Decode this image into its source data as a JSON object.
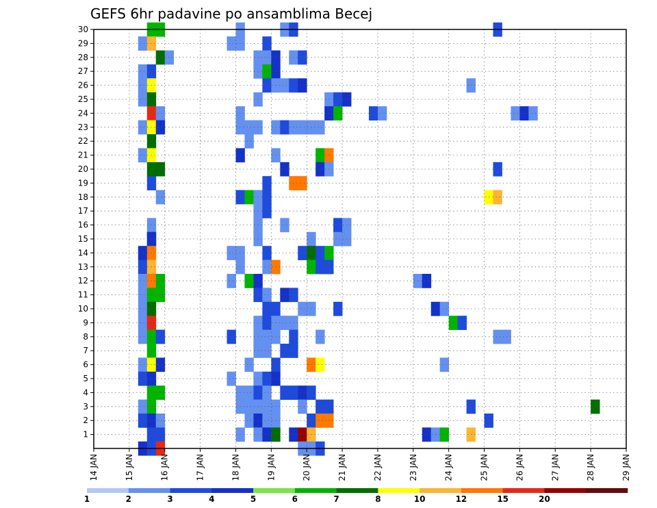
{
  "chart_data": {
    "type": "heatmap",
    "title": "GEFS 6hr padavine po ansamblima Becej",
    "xlabel": "",
    "ylabel": "",
    "x_ticks": [
      "14 JAN",
      "15 JAN",
      "16 JAN",
      "17 JAN",
      "18 JAN",
      "19 JAN",
      "20 JAN",
      "21 JAN",
      "22 JAN",
      "23 JAN",
      "24 JAN",
      "25 JAN",
      "26 JAN",
      "27 JAN",
      "28 JAN",
      "29 JAN"
    ],
    "x_range_days": [
      14,
      29
    ],
    "y_ticks": [
      1,
      2,
      3,
      4,
      5,
      6,
      7,
      8,
      9,
      10,
      11,
      12,
      13,
      14,
      15,
      16,
      17,
      18,
      19,
      20,
      21,
      22,
      23,
      24,
      25,
      26,
      27,
      28,
      29,
      30
    ],
    "y_range": [
      0,
      30
    ],
    "grid": true,
    "time_step_hours": 6,
    "legend": {
      "placement": "bottom",
      "labels": [
        "1",
        "2",
        "3",
        "4",
        "5",
        "6",
        "7",
        "8",
        "10",
        "12",
        "15",
        "20"
      ],
      "colors": [
        "#b4c8f5",
        "#6490f0",
        "#1e4bdc",
        "#1432c8",
        "#78e646",
        "#00b400",
        "#006e00",
        "#ffff00",
        "#ffb432",
        "#ff7800",
        "#e62814",
        "#960000",
        "#640a0a"
      ]
    },
    "cells": [
      [
        30,
        15.5,
        5
      ],
      [
        30,
        15.75,
        5
      ],
      [
        30,
        18.0,
        1
      ],
      [
        30,
        19.25,
        1
      ],
      [
        30,
        19.5,
        2
      ],
      [
        30,
        25.25,
        2
      ],
      [
        29,
        15.25,
        1
      ],
      [
        29,
        15.5,
        8
      ],
      [
        29,
        17.75,
        1
      ],
      [
        29,
        18.0,
        1
      ],
      [
        29,
        18.75,
        2
      ],
      [
        28,
        15.75,
        6
      ],
      [
        28,
        16.0,
        1
      ],
      [
        28,
        18.5,
        1
      ],
      [
        28,
        18.75,
        1
      ],
      [
        28,
        19.0,
        3
      ],
      [
        28,
        19.5,
        1
      ],
      [
        28,
        19.75,
        2
      ],
      [
        27,
        15.25,
        1
      ],
      [
        27,
        15.5,
        2
      ],
      [
        27,
        18.5,
        1
      ],
      [
        27,
        18.75,
        5
      ],
      [
        27,
        19.0,
        3
      ],
      [
        26,
        15.25,
        1
      ],
      [
        26,
        15.5,
        7
      ],
      [
        26,
        18.75,
        2
      ],
      [
        26,
        19.0,
        1
      ],
      [
        26,
        19.25,
        1
      ],
      [
        26,
        19.5,
        2
      ],
      [
        26,
        19.75,
        3
      ],
      [
        26,
        24.5,
        1
      ],
      [
        25,
        15.25,
        1
      ],
      [
        25,
        15.5,
        6
      ],
      [
        25,
        18.5,
        1
      ],
      [
        25,
        20.5,
        1
      ],
      [
        25,
        20.75,
        2
      ],
      [
        25,
        21.0,
        3
      ],
      [
        24,
        15.5,
        10
      ],
      [
        24,
        15.75,
        1
      ],
      [
        24,
        18.0,
        1
      ],
      [
        24,
        20.5,
        3
      ],
      [
        24,
        20.75,
        5
      ],
      [
        24,
        21.75,
        2
      ],
      [
        24,
        22.0,
        1
      ],
      [
        24,
        25.75,
        1
      ],
      [
        24,
        26.0,
        3
      ],
      [
        24,
        26.25,
        1
      ],
      [
        23,
        15.25,
        1
      ],
      [
        23,
        15.5,
        7
      ],
      [
        23,
        15.75,
        3
      ],
      [
        23,
        18.0,
        1
      ],
      [
        23,
        18.25,
        1
      ],
      [
        23,
        18.5,
        1
      ],
      [
        23,
        19.0,
        1
      ],
      [
        23,
        19.25,
        2
      ],
      [
        23,
        19.5,
        1
      ],
      [
        23,
        19.75,
        1
      ],
      [
        23,
        20.0,
        1
      ],
      [
        23,
        20.25,
        1
      ],
      [
        22,
        15.5,
        6
      ],
      [
        22,
        18.25,
        1
      ],
      [
        21,
        15.25,
        1
      ],
      [
        21,
        15.5,
        7
      ],
      [
        21,
        18.0,
        3
      ],
      [
        21,
        19.0,
        1
      ],
      [
        21,
        20.25,
        5
      ],
      [
        21,
        20.5,
        9
      ],
      [
        20,
        15.5,
        6
      ],
      [
        20,
        15.75,
        6
      ],
      [
        20,
        19.25,
        3
      ],
      [
        20,
        20.25,
        3
      ],
      [
        20,
        20.5,
        1
      ],
      [
        20,
        25.25,
        2
      ],
      [
        19,
        15.5,
        2
      ],
      [
        19,
        18.75,
        2
      ],
      [
        19,
        19.5,
        9
      ],
      [
        19,
        19.75,
        9
      ],
      [
        18,
        15.75,
        1
      ],
      [
        18,
        18.0,
        2
      ],
      [
        18,
        18.25,
        5
      ],
      [
        18,
        18.5,
        1
      ],
      [
        18,
        18.75,
        2
      ],
      [
        18,
        25.0,
        7
      ],
      [
        18,
        25.25,
        8
      ],
      [
        17,
        18.5,
        1
      ],
      [
        17,
        18.75,
        2
      ],
      [
        16,
        15.5,
        1
      ],
      [
        16,
        18.5,
        1
      ],
      [
        16,
        19.25,
        1
      ],
      [
        16,
        20.75,
        2
      ],
      [
        16,
        21.0,
        1
      ],
      [
        15,
        15.5,
        3
      ],
      [
        15,
        18.5,
        1
      ],
      [
        15,
        20.0,
        1
      ],
      [
        15,
        20.75,
        1
      ],
      [
        15,
        21.0,
        1
      ],
      [
        14,
        15.25,
        3
      ],
      [
        15,
        15.5,
        3
      ],
      [
        14,
        15.5,
        9
      ],
      [
        14,
        17.75,
        1
      ],
      [
        14,
        18.0,
        1
      ],
      [
        14,
        18.75,
        2
      ],
      [
        14,
        19.75,
        2
      ],
      [
        14,
        20.0,
        6
      ],
      [
        14,
        20.25,
        2
      ],
      [
        14,
        20.5,
        5
      ],
      [
        13,
        15.25,
        2
      ],
      [
        13,
        15.5,
        8
      ],
      [
        13,
        18.0,
        1
      ],
      [
        13,
        18.75,
        1
      ],
      [
        13,
        19.0,
        9
      ],
      [
        13,
        20.0,
        5
      ],
      [
        13,
        20.25,
        2
      ],
      [
        13,
        20.5,
        2
      ],
      [
        12,
        15.25,
        1
      ],
      [
        12,
        15.5,
        9
      ],
      [
        12,
        15.75,
        5
      ],
      [
        12,
        17.75,
        1
      ],
      [
        12,
        18.25,
        5
      ],
      [
        12,
        18.5,
        3
      ],
      [
        12,
        23.0,
        1
      ],
      [
        12,
        23.25,
        3
      ],
      [
        11,
        15.25,
        1
      ],
      [
        11,
        15.5,
        5
      ],
      [
        11,
        15.75,
        5
      ],
      [
        11,
        18.5,
        2
      ],
      [
        11,
        18.75,
        1
      ],
      [
        11,
        19.25,
        3
      ],
      [
        11,
        19.5,
        2
      ],
      [
        10,
        15.25,
        1
      ],
      [
        10,
        15.5,
        6
      ],
      [
        10,
        18.75,
        2
      ],
      [
        10,
        19.0,
        2
      ],
      [
        10,
        19.75,
        1
      ],
      [
        10,
        20.0,
        1
      ],
      [
        10,
        20.75,
        2
      ],
      [
        10,
        23.5,
        3
      ],
      [
        10,
        23.75,
        1
      ],
      [
        9,
        15.25,
        1
      ],
      [
        9,
        15.5,
        10
      ],
      [
        9,
        18.5,
        1
      ],
      [
        9,
        18.75,
        2
      ],
      [
        9,
        19.0,
        1
      ],
      [
        9,
        19.25,
        1
      ],
      [
        9,
        19.5,
        1
      ],
      [
        9,
        24.0,
        5
      ],
      [
        9,
        24.25,
        2
      ],
      [
        8,
        15.25,
        1
      ],
      [
        8,
        15.5,
        5
      ],
      [
        8,
        15.75,
        2
      ],
      [
        8,
        17.75,
        2
      ],
      [
        8,
        18.5,
        1
      ],
      [
        8,
        18.75,
        1
      ],
      [
        8,
        19.0,
        1
      ],
      [
        8,
        19.5,
        2
      ],
      [
        8,
        20.25,
        1
      ],
      [
        8,
        25.25,
        1
      ],
      [
        8,
        25.5,
        1
      ],
      [
        7,
        15.5,
        5
      ],
      [
        7,
        18.5,
        1
      ],
      [
        7,
        18.75,
        1
      ],
      [
        7,
        19.25,
        2
      ],
      [
        7,
        19.5,
        2
      ],
      [
        6,
        15.25,
        1
      ],
      [
        6,
        15.5,
        7
      ],
      [
        6,
        15.75,
        3
      ],
      [
        6,
        18.25,
        1
      ],
      [
        6,
        19.0,
        2
      ],
      [
        6,
        20.0,
        9
      ],
      [
        6,
        20.25,
        7
      ],
      [
        6,
        23.75,
        1
      ],
      [
        5,
        15.25,
        2
      ],
      [
        5,
        15.5,
        3
      ],
      [
        5,
        17.75,
        1
      ],
      [
        5,
        18.5,
        1
      ],
      [
        5,
        18.75,
        2
      ],
      [
        5,
        19.0,
        3
      ],
      [
        4,
        15.5,
        5
      ],
      [
        4,
        15.75,
        5
      ],
      [
        4,
        18.0,
        1
      ],
      [
        4,
        18.25,
        1
      ],
      [
        4,
        18.5,
        2
      ],
      [
        4,
        18.75,
        1
      ],
      [
        4,
        19.25,
        2
      ],
      [
        4,
        19.5,
        2
      ],
      [
        4,
        19.75,
        3
      ],
      [
        4,
        20.0,
        2
      ],
      [
        3,
        15.25,
        1
      ],
      [
        3,
        15.5,
        5
      ],
      [
        3,
        18.0,
        1
      ],
      [
        3,
        18.25,
        1
      ],
      [
        3,
        18.5,
        1
      ],
      [
        3,
        18.75,
        1
      ],
      [
        3,
        19.0,
        1
      ],
      [
        3,
        19.75,
        1
      ],
      [
        3,
        20.25,
        2
      ],
      [
        3,
        20.5,
        2
      ],
      [
        3,
        24.5,
        2
      ],
      [
        3,
        28.0,
        6
      ],
      [
        2,
        15.25,
        2
      ],
      [
        2,
        15.5,
        3
      ],
      [
        2,
        15.75,
        1
      ],
      [
        2,
        18.25,
        1
      ],
      [
        2,
        18.5,
        3
      ],
      [
        2,
        18.75,
        1
      ],
      [
        2,
        19.0,
        1
      ],
      [
        2,
        20.0,
        2
      ],
      [
        2,
        20.25,
        9
      ],
      [
        2,
        20.5,
        9
      ],
      [
        2,
        25.0,
        2
      ],
      [
        1,
        15.5,
        2
      ],
      [
        1,
        15.75,
        2
      ],
      [
        1,
        18.0,
        1
      ],
      [
        1,
        18.5,
        1
      ],
      [
        1,
        18.75,
        3
      ],
      [
        1,
        19.0,
        6
      ],
      [
        1,
        19.5,
        3
      ],
      [
        1,
        19.75,
        11
      ],
      [
        1,
        20.0,
        8
      ],
      [
        1,
        23.25,
        3
      ],
      [
        1,
        23.5,
        1
      ],
      [
        1,
        23.75,
        5
      ],
      [
        1,
        24.5,
        8
      ],
      [
        0,
        15.25,
        3
      ],
      [
        0,
        15.5,
        2
      ],
      [
        0,
        15.75,
        10
      ],
      [
        0,
        19.75,
        1
      ],
      [
        0,
        20.0,
        1
      ],
      [
        0,
        20.25,
        2
      ]
    ]
  }
}
